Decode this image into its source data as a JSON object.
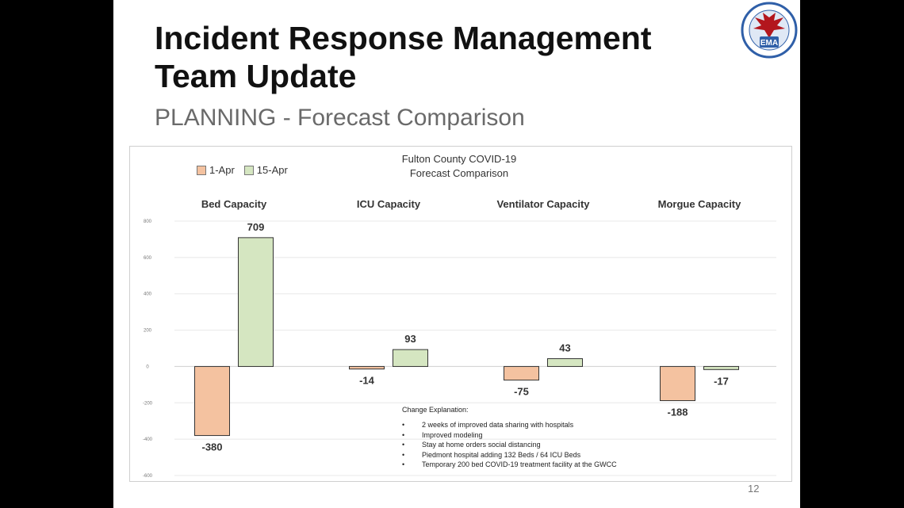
{
  "slide": {
    "title": "Incident Response Management Team Update",
    "subtitle": "PLANNING - Forecast Comparison",
    "page_number": "12",
    "logo_text": "EMA"
  },
  "notes": {
    "title": "Change Explanation:",
    "items": [
      "2 weeks of improved data sharing with hospitals",
      "Improved modeling",
      "Stay at home orders social distancing",
      "Piedmont hospital adding 132 Beds / 64 ICU Beds",
      "Temporary 200 bed COVID-19 treatment facility at the GWCC"
    ]
  },
  "colors": {
    "series_1": "#f4c2a0",
    "series_2": "#d5e6c1",
    "logo_blue": "#2f5fa8",
    "logo_red": "#b3161d"
  },
  "chart_data": {
    "type": "bar",
    "title": "Fulton County COVID-19 Forecast Comparison",
    "title_lines": [
      "Fulton County COVID-19",
      "Forecast Comparison"
    ],
    "categories": [
      "Bed Capacity",
      "ICU Capacity",
      "Ventilator Capacity",
      "Morgue Capacity"
    ],
    "series": [
      {
        "name": "1-Apr",
        "values": [
          -380,
          -14,
          -75,
          -188
        ]
      },
      {
        "name": "15-Apr",
        "values": [
          709,
          93,
          43,
          -17
        ]
      }
    ],
    "ylim": [
      -600,
      800
    ],
    "yticks": [
      800,
      600,
      400,
      200,
      0,
      -200,
      -400,
      -600
    ],
    "grid": true,
    "legend_position": "top-left",
    "data_labels": true,
    "xlabel": "",
    "ylabel": ""
  }
}
